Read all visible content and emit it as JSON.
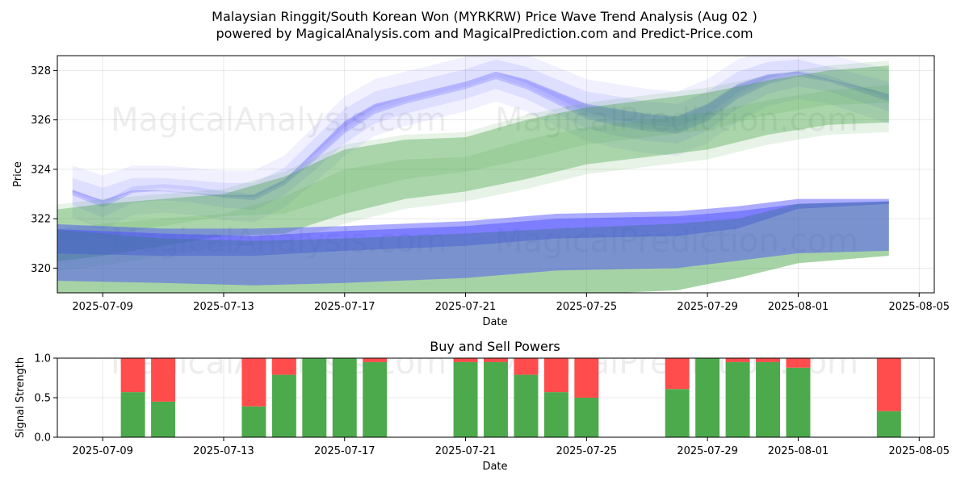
{
  "chart_data": [
    {
      "type": "area",
      "title": "Malaysian Ringgit/South Korean Won (MYRKRW) Price Wave Trend Analysis (Aug 02 )",
      "subtitle": "powered by MagicalAnalysis.com and MagicalPrediction.com and Predict-Price.com",
      "xlabel": "Date",
      "ylabel": "Price",
      "xlim": [
        "2025-07-07 12:00",
        "2025-08-05 12:00"
      ],
      "ylim": [
        319.0,
        328.6
      ],
      "x_ticks": [
        "2025-07-09",
        "2025-07-13",
        "2025-07-17",
        "2025-07-21",
        "2025-07-25",
        "2025-07-29",
        "2025-08-01",
        "2025-08-05"
      ],
      "y_ticks": [
        320,
        322,
        324,
        326,
        328
      ],
      "grid": true,
      "watermarks": [
        "MagicalAnalysis.com",
        "MagicalPrediction.com"
      ],
      "colors": {
        "green_band": "#3a9e3a",
        "blue_band": "#4444ff",
        "overlap": "#6a8fa8"
      },
      "series": [
        {
          "color": "blue",
          "x": [
            "2025-07-08",
            "2025-07-09",
            "2025-07-10",
            "2025-07-11",
            "2025-07-12",
            "2025-07-13",
            "2025-07-14",
            "2025-07-15",
            "2025-07-16",
            "2025-07-17",
            "2025-07-18",
            "2025-07-19",
            "2025-07-20",
            "2025-07-21",
            "2025-07-22",
            "2025-07-23",
            "2025-07-24",
            "2025-07-25",
            "2025-07-26",
            "2025-07-27",
            "2025-07-28",
            "2025-07-29",
            "2025-07-30",
            "2025-07-31",
            "2025-08-01",
            "2025-08-02",
            "2025-08-03",
            "2025-08-04"
          ],
          "lower": [
            322.5,
            322.0,
            322.6,
            322.7,
            322.6,
            322.4,
            322.3,
            322.9,
            323.9,
            325.0,
            325.8,
            326.2,
            326.5,
            326.8,
            327.2,
            326.8,
            326.2,
            325.6,
            325.3,
            325.1,
            325.0,
            325.5,
            326.4,
            327.0,
            327.3,
            327.1,
            326.7,
            326.3
          ],
          "upper": [
            323.6,
            323.2,
            323.6,
            323.6,
            323.5,
            323.4,
            323.4,
            324.0,
            325.2,
            326.4,
            327.1,
            327.4,
            327.7,
            328.0,
            328.4,
            328.1,
            327.6,
            327.1,
            326.9,
            326.7,
            326.6,
            327.1,
            327.9,
            328.3,
            328.4,
            328.1,
            327.8,
            327.5
          ]
        },
        {
          "color": "green",
          "x": [
            "2025-07-07",
            "2025-07-09",
            "2025-07-11",
            "2025-07-13",
            "2025-07-15",
            "2025-07-17",
            "2025-07-19",
            "2025-07-21",
            "2025-07-23",
            "2025-07-25",
            "2025-07-27",
            "2025-07-29",
            "2025-07-31",
            "2025-08-02",
            "2025-08-04"
          ],
          "lower": [
            320.2,
            320.5,
            320.9,
            321.3,
            321.4,
            322.2,
            322.8,
            323.1,
            323.6,
            324.2,
            324.5,
            324.8,
            325.4,
            325.8,
            325.9
          ],
          "upper": [
            322.3,
            322.6,
            322.8,
            323.0,
            323.7,
            324.8,
            325.2,
            325.3,
            326.0,
            326.5,
            326.8,
            327.1,
            327.6,
            328.0,
            328.2
          ]
        },
        {
          "color": "blue",
          "x": [
            "2025-07-07",
            "2025-07-11",
            "2025-07-14",
            "2025-07-17",
            "2025-07-21",
            "2025-07-24",
            "2025-07-28",
            "2025-07-30",
            "2025-08-01",
            "2025-08-04"
          ],
          "lower": [
            320.6,
            320.5,
            320.5,
            320.7,
            320.9,
            321.2,
            321.3,
            321.6,
            322.4,
            322.6
          ],
          "upper": [
            321.8,
            321.6,
            321.6,
            321.7,
            321.9,
            322.2,
            322.3,
            322.5,
            322.8,
            322.8
          ]
        },
        {
          "color": "green",
          "x": [
            "2025-07-07",
            "2025-07-11",
            "2025-07-14",
            "2025-07-17",
            "2025-07-21",
            "2025-07-24",
            "2025-07-28",
            "2025-07-30",
            "2025-08-01",
            "2025-08-04"
          ],
          "lower": [
            318.5,
            318.4,
            318.4,
            318.5,
            318.7,
            318.9,
            319.1,
            319.6,
            320.2,
            320.5
          ],
          "upper": [
            321.6,
            321.2,
            321.1,
            321.2,
            321.4,
            321.6,
            321.8,
            322.0,
            322.6,
            322.7
          ]
        },
        {
          "color": "blue",
          "x": [
            "2025-07-07",
            "2025-07-11",
            "2025-07-14",
            "2025-07-17",
            "2025-07-21",
            "2025-07-24",
            "2025-07-28",
            "2025-07-30",
            "2025-08-01",
            "2025-08-04"
          ],
          "lower": [
            319.5,
            319.4,
            319.3,
            319.4,
            319.6,
            319.9,
            320.0,
            320.3,
            320.6,
            320.7
          ],
          "upper": [
            321.6,
            321.4,
            321.3,
            321.5,
            321.7,
            322.0,
            322.1,
            322.3,
            322.6,
            322.7
          ]
        }
      ]
    },
    {
      "type": "bar",
      "title": "Buy and Sell Powers",
      "xlabel": "Date",
      "ylabel": "Signal Strength",
      "ylim": [
        0,
        1
      ],
      "y_ticks": [
        "0.0",
        "0.5",
        "1.0"
      ],
      "x_ticks": [
        "2025-07-09",
        "2025-07-13",
        "2025-07-17",
        "2025-07-21",
        "2025-07-25",
        "2025-07-29",
        "2025-08-01",
        "2025-08-05"
      ],
      "grid": true,
      "colors": {
        "buy": "#4caa4c",
        "sell": "#ff4c4c"
      },
      "categories": [
        "2025-07-10",
        "2025-07-11",
        "2025-07-14",
        "2025-07-15",
        "2025-07-16",
        "2025-07-17",
        "2025-07-18",
        "2025-07-21",
        "2025-07-22",
        "2025-07-23",
        "2025-07-24",
        "2025-07-25",
        "2025-07-28",
        "2025-07-29",
        "2025-07-30",
        "2025-07-31",
        "2025-08-01",
        "2025-08-04"
      ],
      "series": [
        {
          "color": "green",
          "values": [
            0.57,
            0.45,
            0.39,
            0.79,
            1.0,
            1.0,
            0.95,
            0.95,
            0.95,
            0.79,
            0.57,
            0.5,
            0.61,
            1.0,
            0.95,
            0.95,
            0.88,
            0.33
          ]
        },
        {
          "color": "red",
          "values": [
            0.43,
            0.55,
            0.61,
            0.21,
            0.0,
            0.0,
            0.05,
            0.05,
            0.05,
            0.21,
            0.43,
            0.5,
            0.39,
            0.0,
            0.05,
            0.05,
            0.12,
            0.67
          ]
        }
      ]
    }
  ]
}
